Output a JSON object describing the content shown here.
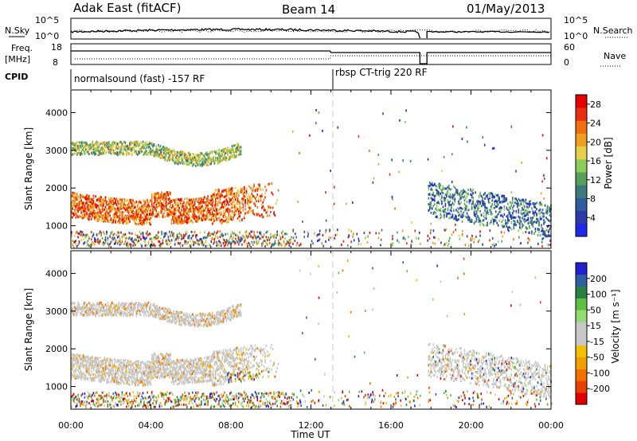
{
  "header": {
    "station": "Adak East (fitACF)",
    "beam": "Beam 14",
    "date": "01/May/2013"
  },
  "strips": {
    "nsky_label": "N.Sky",
    "nsky_ticks": [
      "10^5",
      "10^0"
    ],
    "nsearch_label": "N.Search",
    "nsearch_ticks": [
      "10^5",
      "10^0"
    ],
    "freq_label": "Freq.",
    "freq_unit": "[MHz]",
    "freq_ticks": [
      "18",
      "8"
    ],
    "nave_label": "Nave",
    "nave_ticks": [
      "60",
      "0"
    ],
    "cpid_label": "CPID",
    "cpid_segments": [
      {
        "label": "normalsound (fast) -157 RF",
        "start_hour": 0
      },
      {
        "label": "rbsp CT-trig 220 RF",
        "start_hour": 13
      }
    ]
  },
  "colors": {
    "power_scale": [
      "#1e28e6",
      "#2a3ba8",
      "#2f5c9c",
      "#3c7a7c",
      "#58a05a",
      "#8ccc5a",
      "#e6d04a",
      "#f0a020",
      "#f07010",
      "#e83010",
      "#e60000"
    ],
    "velocity_scale": [
      "#2020d0",
      "#2f5fa0",
      "#2a8040",
      "#5ec040",
      "#90dc70",
      "#c8c8c8",
      "#c8c8c8",
      "#f4c000",
      "#f0a000",
      "#f07000",
      "#e84000",
      "#e00000"
    ],
    "dashed_marker": "#c8c8c8"
  },
  "chart_data": [
    {
      "type": "heatmap",
      "panel": "power",
      "ylabel": "Slant Range [km]",
      "xlim_hours": [
        0,
        24
      ],
      "ylim": [
        400,
        4600
      ],
      "yticks": [
        1000,
        2000,
        3000,
        4000
      ],
      "colorbar_label": "Power [dB]",
      "colorbar_ticks": [
        4,
        8,
        12,
        16,
        20,
        24,
        28
      ],
      "colorbar_range": [
        0,
        30
      ]
    },
    {
      "type": "heatmap",
      "panel": "velocity",
      "xlabel": "Time UT",
      "ylabel": "Slant Range [km]",
      "xlim_hours": [
        0,
        24
      ],
      "ylim": [
        400,
        4600
      ],
      "yticks": [
        1000,
        2000,
        3000,
        4000
      ],
      "xticks": [
        "00:00",
        "04:00",
        "08:00",
        "12:00",
        "16:00",
        "20:00",
        "00:00"
      ],
      "colorbar_label": "Velocity [m s⁻¹]",
      "colorbar_ticks": [
        200,
        100,
        50,
        15,
        -15,
        -50,
        -100,
        -200
      ]
    }
  ]
}
